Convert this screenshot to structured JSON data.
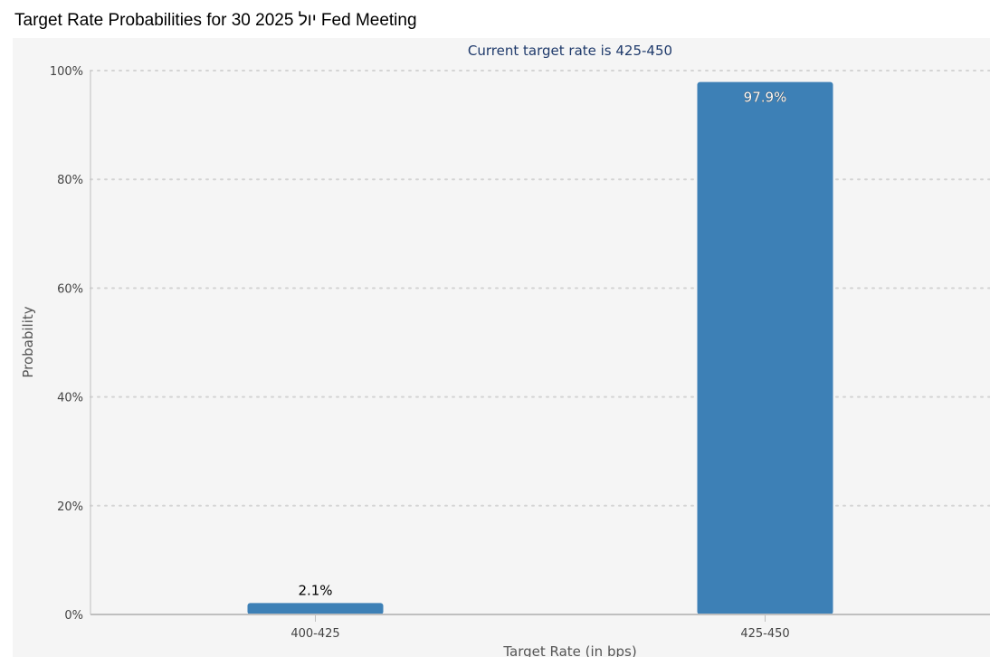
{
  "page": {
    "title": "Target Rate Probabilities for 30 יול 2025 Fed Meeting"
  },
  "chart_data": {
    "type": "bar",
    "title": "Current target rate is 425-450",
    "xlabel": "Target Rate (in bps)",
    "ylabel": "Probability",
    "categories": [
      "400-425",
      "425-450"
    ],
    "values": [
      2.1,
      97.9
    ],
    "value_labels": [
      "2.1%",
      "97.9%"
    ],
    "ylim": [
      0,
      100
    ],
    "yticks": [
      0,
      20,
      40,
      60,
      80,
      100
    ],
    "ytick_labels": [
      "0%",
      "20%",
      "40%",
      "60%",
      "80%",
      "100%"
    ],
    "grid": true,
    "legend": "none",
    "colors": {
      "bar": "#3d80b6",
      "title": "#1f3a6b",
      "axis_text": "#444444",
      "grid": "#d4d4d4",
      "axis_line": "#bfbfbf"
    }
  }
}
